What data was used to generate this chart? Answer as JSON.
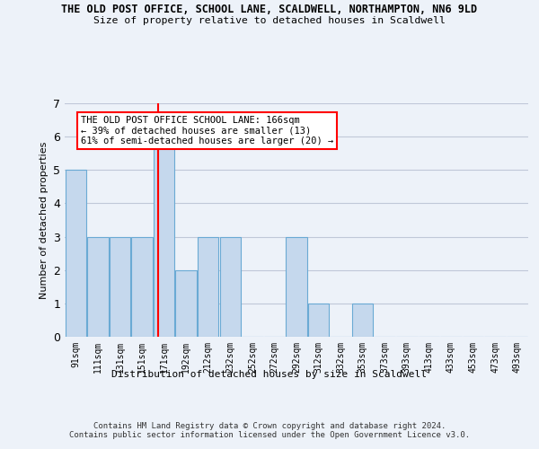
{
  "title_line1": "THE OLD POST OFFICE, SCHOOL LANE, SCALDWELL, NORTHAMPTON, NN6 9LD",
  "title_line2": "Size of property relative to detached houses in Scaldwell",
  "xlabel": "Distribution of detached houses by size in Scaldwell",
  "ylabel": "Number of detached properties",
  "categories": [
    "91sqm",
    "111sqm",
    "131sqm",
    "151sqm",
    "171sqm",
    "192sqm",
    "212sqm",
    "232sqm",
    "252sqm",
    "272sqm",
    "292sqm",
    "312sqm",
    "332sqm",
    "353sqm",
    "373sqm",
    "393sqm",
    "413sqm",
    "433sqm",
    "453sqm",
    "473sqm",
    "493sqm"
  ],
  "bar_heights": [
    5,
    3,
    3,
    3,
    6,
    2,
    3,
    3,
    0,
    0,
    3,
    1,
    0,
    1,
    0,
    0,
    0,
    0,
    0,
    0,
    0
  ],
  "bar_color": "#c5d8ed",
  "bar_edgecolor": "#6aaad4",
  "ylim": [
    0,
    7
  ],
  "yticks": [
    0,
    1,
    2,
    3,
    4,
    5,
    6,
    7
  ],
  "red_line_x": 3.75,
  "annotation_text": "THE OLD POST OFFICE SCHOOL LANE: 166sqm\n← 39% of detached houses are smaller (13)\n61% of semi-detached houses are larger (20) →",
  "footnote": "Contains HM Land Registry data © Crown copyright and database right 2024.\nContains public sector information licensed under the Open Government Licence v3.0.",
  "background_color": "#edf2f9",
  "plot_bg_color": "#edf2f9"
}
